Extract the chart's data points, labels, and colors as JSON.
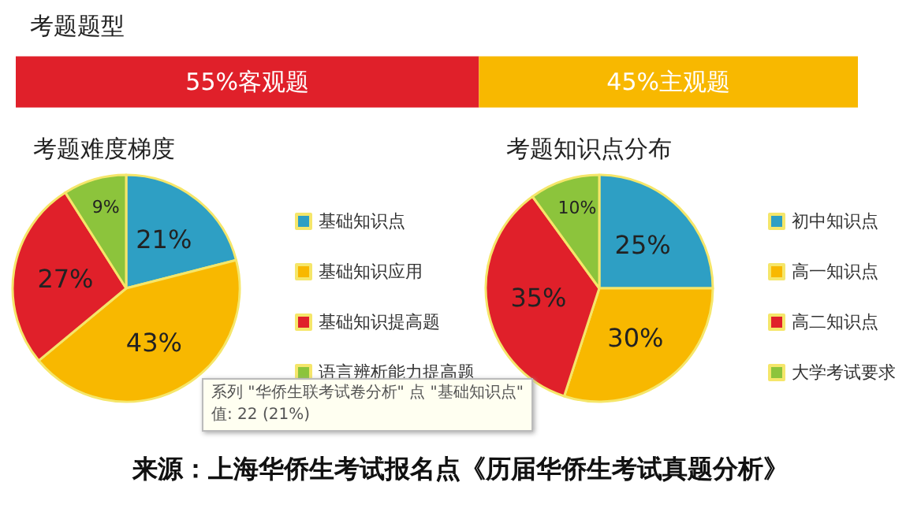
{
  "chart_data": [
    {
      "type": "bar",
      "title": "考题题型",
      "orientation": "horizontal",
      "stacked": true,
      "categories": [
        null
      ],
      "xlim": [
        0,
        100
      ],
      "series": [
        {
          "color": "#e0202a",
          "values": [
            55
          ],
          "value_labels": [
            "55%客观题"
          ]
        },
        {
          "color": "#f8b800",
          "values": [
            45
          ],
          "value_labels": [
            "45%主观题"
          ]
        }
      ]
    },
    {
      "type": "pie",
      "title": "考题难度梯度",
      "categories": [
        "基础知识点",
        "基础知识应用",
        "基础知识提高题",
        "语言辨析能力提高题"
      ],
      "values": [
        21,
        43,
        27,
        9
      ],
      "value_labels": [
        "21%",
        "43%",
        "27%",
        "9%"
      ],
      "colors": [
        "#2e9fc4",
        "#f8b800",
        "#e0202a",
        "#8cc43c"
      ],
      "legend": "right",
      "annotations": [
        "系列 \"华侨生联考试卷分析\" 点 \"基础知识点\"",
        "值: 22 (21%)"
      ]
    },
    {
      "type": "pie",
      "title": "考题知识点分布",
      "categories": [
        "初中知识点",
        "高一知识点",
        "高二知识点",
        "大学考试要求"
      ],
      "values": [
        25,
        30,
        35,
        10
      ],
      "value_labels": [
        "25%",
        "30%",
        "35%",
        "10%"
      ],
      "colors": [
        "#2e9fc4",
        "#f8b800",
        "#e0202a",
        "#8cc43c"
      ],
      "legend": "right",
      "annotations": [
        "来源：上海华侨生考试报名点《历届华侨生考试真题分析》"
      ]
    }
  ]
}
